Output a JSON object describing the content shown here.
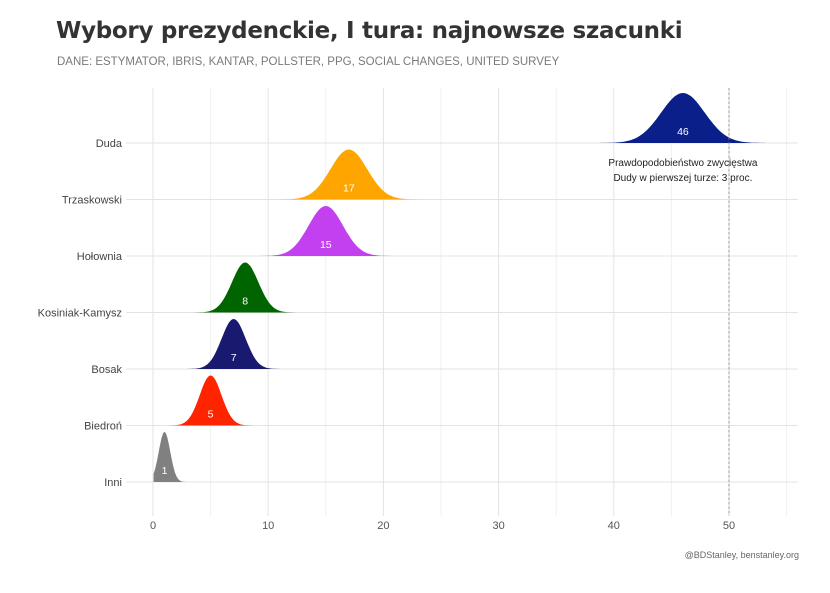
{
  "chart_data": {
    "type": "area",
    "title": "Wybory prezydenckie, I tura: najnowsze szacunki",
    "subtitle": "DANE: ESTYMATOR, IBRIS, KANTAR, POLLSTER, PPG, SOCIAL CHANGES, UNITED SURVEY",
    "caption": "@BDStanley, benstanley.org",
    "xlim": [
      -2,
      56
    ],
    "x_ticks": [
      0,
      10,
      20,
      30,
      40,
      50
    ],
    "grid": true,
    "reference_line": {
      "x": 50,
      "style": "dashed"
    },
    "annotation": {
      "line1": "Prawdopodobieństwo zwycięstwa",
      "line2": "Dudy w pierwszej turze: 3 proc."
    },
    "series": [
      {
        "name": "Duda",
        "value": 46,
        "color": "#0a1f8a",
        "spread": 1.9
      },
      {
        "name": "Trzaskowski",
        "value": 17,
        "color": "#ffa500",
        "spread": 1.6
      },
      {
        "name": "Hołownia",
        "value": 15,
        "color": "#c340f0",
        "spread": 1.5
      },
      {
        "name": "Kosiniak-Kamysz",
        "value": 8,
        "color": "#006400",
        "spread": 1.15
      },
      {
        "name": "Bosak",
        "value": 7,
        "color": "#191970",
        "spread": 1.05
      },
      {
        "name": "Biedroń",
        "value": 5,
        "color": "#ff2400",
        "spread": 0.95
      },
      {
        "name": "Inni",
        "value": 1,
        "color": "#808080",
        "spread": 0.5
      }
    ]
  }
}
